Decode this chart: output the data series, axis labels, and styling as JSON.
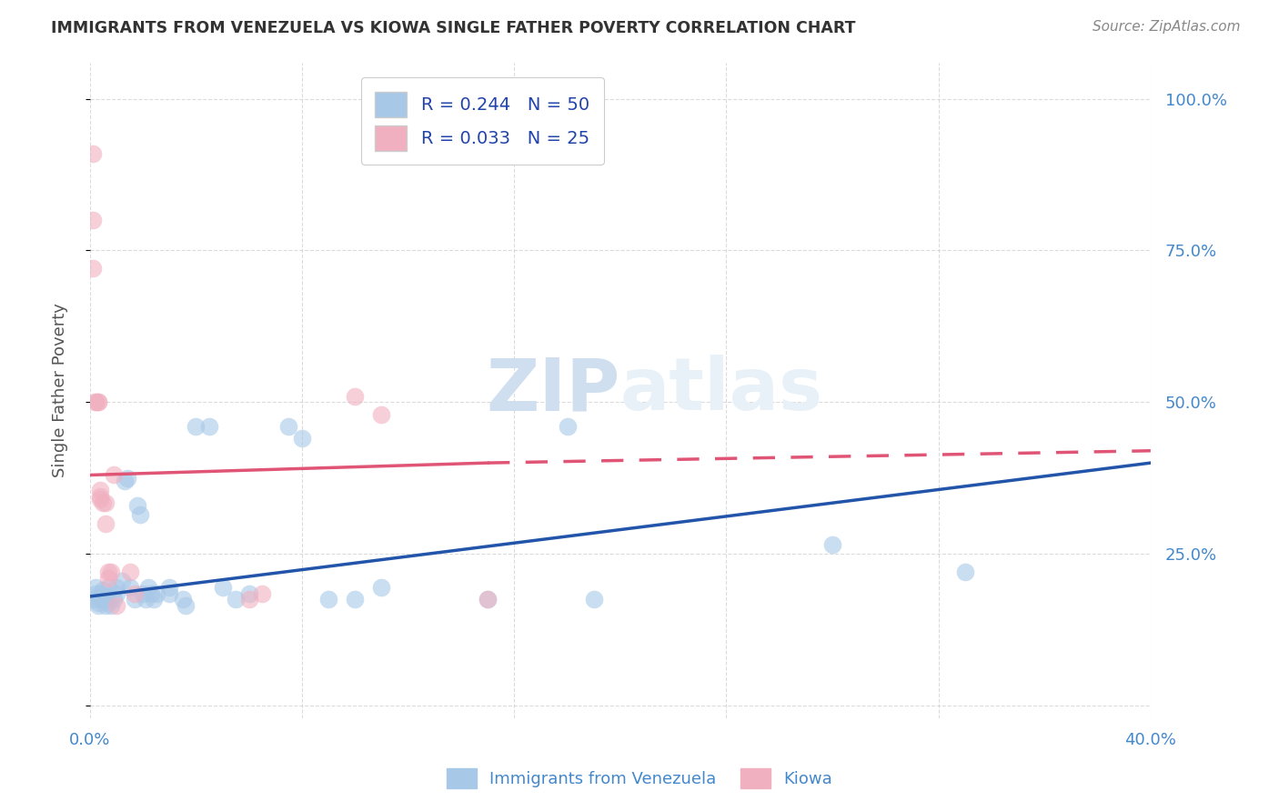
{
  "title": "IMMIGRANTS FROM VENEZUELA VS KIOWA SINGLE FATHER POVERTY CORRELATION CHART",
  "source": "Source: ZipAtlas.com",
  "ylabel": "Single Father Poverty",
  "x_min": 0.0,
  "x_max": 0.4,
  "y_min": -0.02,
  "y_max": 1.06,
  "r_blue": 0.244,
  "n_blue": 50,
  "r_pink": 0.033,
  "n_pink": 25,
  "legend_label_blue": "Immigrants from Venezuela",
  "legend_label_pink": "Kiowa",
  "blue_color": "#a8c8e8",
  "pink_color": "#f0b0c0",
  "blue_line_color": "#2255aa",
  "pink_line_color": "#e05575",
  "blue_scatter": [
    [
      0.001,
      0.175
    ],
    [
      0.002,
      0.185
    ],
    [
      0.002,
      0.195
    ],
    [
      0.003,
      0.17
    ],
    [
      0.003,
      0.165
    ],
    [
      0.004,
      0.175
    ],
    [
      0.004,
      0.185
    ],
    [
      0.005,
      0.19
    ],
    [
      0.005,
      0.18
    ],
    [
      0.006,
      0.175
    ],
    [
      0.006,
      0.165
    ],
    [
      0.006,
      0.18
    ],
    [
      0.007,
      0.195
    ],
    [
      0.007,
      0.17
    ],
    [
      0.008,
      0.165
    ],
    [
      0.009,
      0.175
    ],
    [
      0.01,
      0.185
    ],
    [
      0.01,
      0.195
    ],
    [
      0.012,
      0.205
    ],
    [
      0.013,
      0.37
    ],
    [
      0.014,
      0.375
    ],
    [
      0.015,
      0.195
    ],
    [
      0.017,
      0.175
    ],
    [
      0.018,
      0.33
    ],
    [
      0.019,
      0.315
    ],
    [
      0.02,
      0.185
    ],
    [
      0.021,
      0.175
    ],
    [
      0.022,
      0.195
    ],
    [
      0.023,
      0.185
    ],
    [
      0.024,
      0.175
    ],
    [
      0.025,
      0.185
    ],
    [
      0.03,
      0.195
    ],
    [
      0.03,
      0.185
    ],
    [
      0.035,
      0.175
    ],
    [
      0.036,
      0.165
    ],
    [
      0.04,
      0.46
    ],
    [
      0.045,
      0.46
    ],
    [
      0.05,
      0.195
    ],
    [
      0.055,
      0.175
    ],
    [
      0.06,
      0.185
    ],
    [
      0.075,
      0.46
    ],
    [
      0.08,
      0.44
    ],
    [
      0.09,
      0.175
    ],
    [
      0.1,
      0.175
    ],
    [
      0.11,
      0.195
    ],
    [
      0.15,
      0.175
    ],
    [
      0.18,
      0.46
    ],
    [
      0.19,
      0.175
    ],
    [
      0.28,
      0.265
    ],
    [
      0.33,
      0.22
    ]
  ],
  "pink_scatter": [
    [
      0.001,
      0.91
    ],
    [
      0.001,
      0.8
    ],
    [
      0.001,
      0.72
    ],
    [
      0.002,
      0.5
    ],
    [
      0.002,
      0.5
    ],
    [
      0.003,
      0.5
    ],
    [
      0.003,
      0.5
    ],
    [
      0.004,
      0.355
    ],
    [
      0.004,
      0.345
    ],
    [
      0.004,
      0.34
    ],
    [
      0.005,
      0.335
    ],
    [
      0.006,
      0.335
    ],
    [
      0.006,
      0.3
    ],
    [
      0.007,
      0.22
    ],
    [
      0.007,
      0.21
    ],
    [
      0.008,
      0.22
    ],
    [
      0.009,
      0.38
    ],
    [
      0.01,
      0.165
    ],
    [
      0.015,
      0.22
    ],
    [
      0.017,
      0.185
    ],
    [
      0.06,
      0.175
    ],
    [
      0.065,
      0.185
    ],
    [
      0.1,
      0.51
    ],
    [
      0.11,
      0.48
    ],
    [
      0.15,
      0.175
    ]
  ],
  "blue_trend": [
    0.0,
    0.4,
    0.18,
    0.4
  ],
  "pink_trend_solid": [
    0.0,
    0.15,
    0.38,
    0.4
  ],
  "pink_trend_dashed": [
    0.15,
    0.4,
    0.4,
    0.42
  ],
  "right_yticks": [
    0.0,
    0.25,
    0.5,
    0.75,
    1.0
  ],
  "right_yticklabels": [
    "",
    "25.0%",
    "50.0%",
    "75.0%",
    "100.0%"
  ],
  "xticks": [
    0.0,
    0.08,
    0.16,
    0.24,
    0.32,
    0.4
  ],
  "xticklabels": [
    "0.0%",
    "",
    "",
    "",
    "",
    "40.0%"
  ],
  "background_color": "#ffffff",
  "grid_color": "#cccccc"
}
